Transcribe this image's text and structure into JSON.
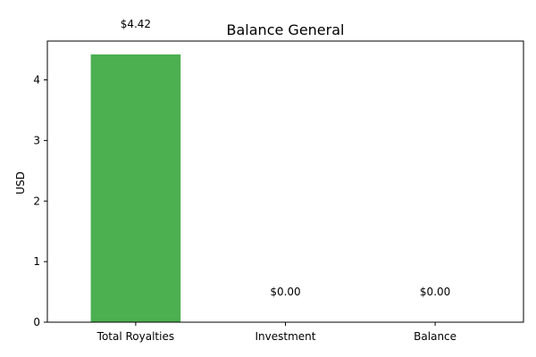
{
  "chart_data": {
    "type": "bar",
    "title": "Balance General",
    "xlabel": "",
    "ylabel": "USD",
    "categories": [
      "Total Royalties",
      "Investment",
      "Balance"
    ],
    "values": [
      4.42,
      0.0,
      0.0
    ],
    "data_labels": [
      "$4.42",
      "$0.00",
      "$0.00"
    ],
    "y_ticks": [
      0,
      1,
      2,
      3,
      4
    ],
    "ylim": [
      0,
      4.641
    ],
    "bar_colors": [
      "#4caf50",
      "#4caf50",
      "#4caf50"
    ],
    "grid": false,
    "legend": "none"
  }
}
